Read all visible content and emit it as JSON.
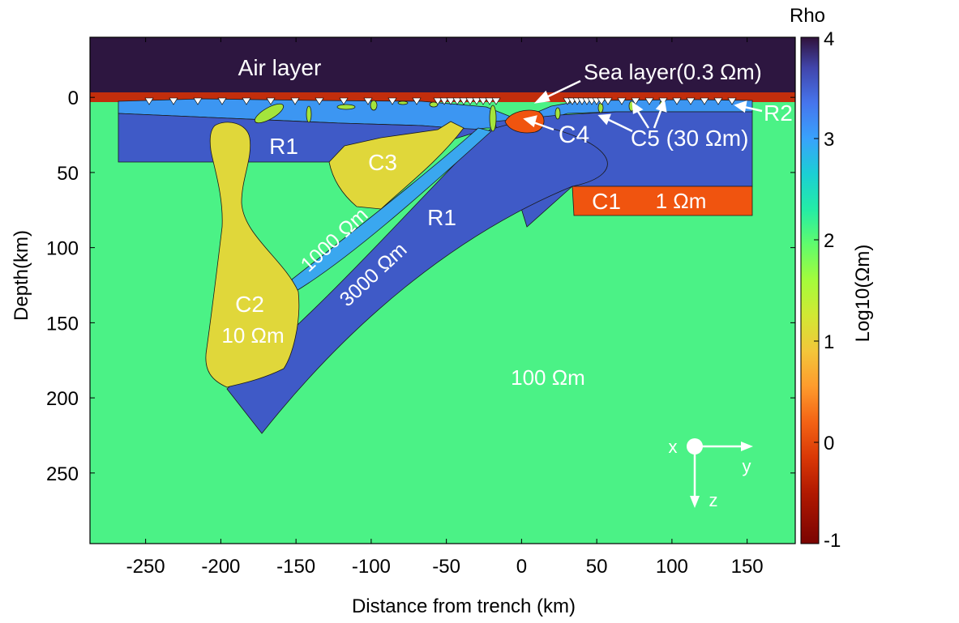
{
  "axes": {
    "xlabel": "Distance from trench (km)",
    "ylabel": "Depth(km)",
    "xticks": [
      "-250",
      "-200",
      "-150",
      "-100",
      "-50",
      "0",
      "50",
      "100",
      "150"
    ],
    "yticks": [
      "0",
      "50",
      "100",
      "150",
      "200",
      "250"
    ],
    "xlim": [
      -287,
      182
    ],
    "ylim": [
      -40,
      297
    ]
  },
  "colorbar": {
    "title": "Rho",
    "label": "Log10(Ωm)",
    "ticks": [
      "4",
      "3",
      "2",
      "1",
      "0",
      "-1"
    ],
    "range": [
      -1,
      4
    ],
    "colormap": "turbo"
  },
  "labels": {
    "air": "Air layer",
    "sea": "Sea layer(0.3 Ωm)",
    "r2": "R2",
    "r1_upper": "R1",
    "r1_lower": "R1",
    "c1": "C1",
    "c1_res": "1 Ωm",
    "c2": "C2",
    "c2_res": "10 Ωm",
    "c3": "C3",
    "c4": "C4",
    "c5": "C5 (30 Ωm)",
    "slab_upper_res": "1000 Ωm",
    "slab_lower_res": "3000 Ωm",
    "background_res": "100 Ωm"
  },
  "coordinate_axes": {
    "x": "x",
    "y": "y",
    "z": "z"
  },
  "colors": {
    "air": "#2d1640",
    "sea": "#c22e0c",
    "background": "#4bf286",
    "resistor_3000": "#3f5ac7",
    "resistor_1000": "#3aa7ef",
    "shallow_layer": "#3c96f2",
    "conductor_10": "#e0d73a",
    "conductor_1": "#f0540f",
    "conductor_30": "#a4e53c"
  },
  "stations": {
    "count": 40,
    "symbol": "inverted-triangle"
  }
}
